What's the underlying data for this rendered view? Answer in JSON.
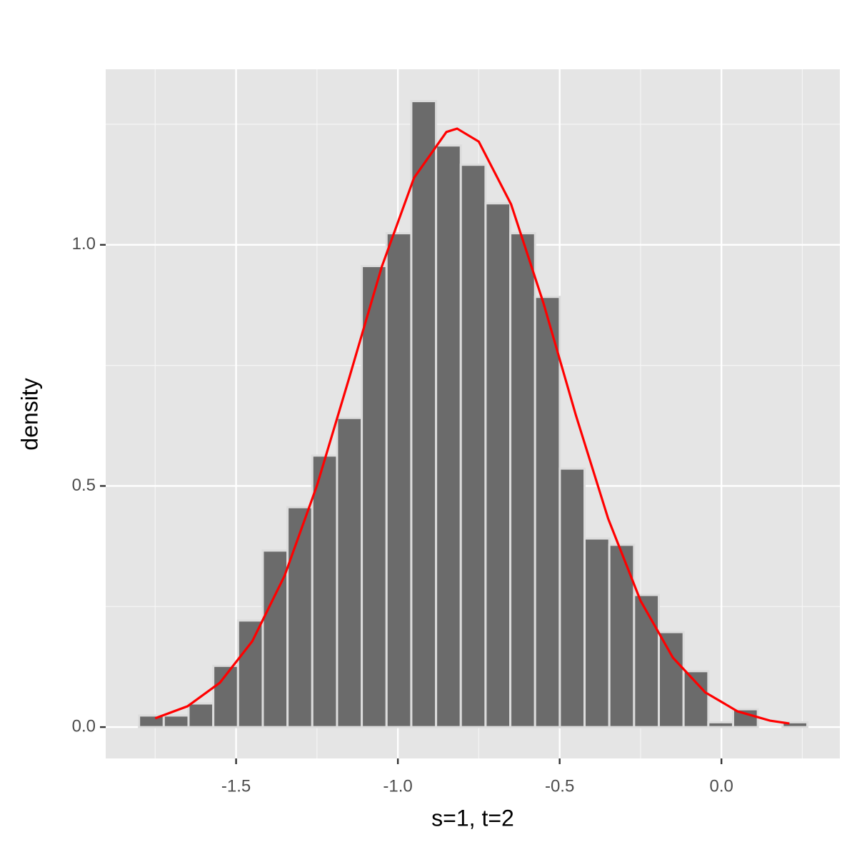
{
  "chart_data": {
    "type": "histogram",
    "x_label": "s=1, t=2",
    "y_label": "density",
    "bins": [
      -1.8,
      -1.7235,
      -1.647,
      -1.5705,
      -1.494,
      -1.4175,
      -1.341,
      -1.2645,
      -1.188,
      -1.1115,
      -1.035,
      -0.9585,
      -0.882,
      -0.8055,
      -0.729,
      -0.6525,
      -0.576,
      -0.4995,
      -0.423,
      -0.3465,
      -0.27,
      -0.1935,
      -0.117,
      -0.0405,
      0.036,
      0.1125,
      0.189,
      0.2655
    ],
    "values": [
      0.024,
      0.024,
      0.049,
      0.127,
      0.221,
      0.366,
      0.456,
      0.563,
      0.641,
      0.956,
      1.024,
      1.298,
      1.206,
      1.166,
      1.086,
      1.024,
      0.892,
      0.536,
      0.391,
      0.378,
      0.274,
      0.197,
      0.116,
      0.01,
      0.037,
      0,
      0.01
    ],
    "color": "#6b6b6b",
    "edge_color": "#dcdcdc",
    "curve": {
      "color": "#ff0000",
      "x": [
        -1.75,
        -1.65,
        -1.55,
        -1.45,
        -1.35,
        -1.25,
        -1.15,
        -1.05,
        -0.95,
        -0.85,
        -0.817,
        -0.75,
        -0.65,
        -0.55,
        -0.45,
        -0.35,
        -0.25,
        -0.15,
        -0.05,
        0.05,
        0.15,
        0.21
      ],
      "values": [
        0.0183,
        0.0432,
        0.0921,
        0.178,
        0.314,
        0.501,
        0.725,
        0.954,
        1.139,
        1.234,
        1.241,
        1.214,
        1.084,
        0.879,
        0.647,
        0.432,
        0.262,
        0.144,
        0.072,
        0.0326,
        0.0134,
        0.0075
      ]
    },
    "xlim": [
      -1.903,
      0.366
    ],
    "ylim": [
      -0.065,
      1.364
    ],
    "xticks": [
      -1.5,
      {
        "value": -1.0,
        "label": "-1.0"
      },
      -0.5,
      {
        "value": 0,
        "label": "0.0"
      }
    ],
    "yticks": [
      {
        "value": 0,
        "label": "0.0"
      },
      0.5,
      {
        "value": 1,
        "label": "1.0"
      }
    ],
    "x_minor_ticks": [
      -1.75,
      -1.25,
      -0.75,
      -0.25,
      0.25
    ],
    "y_minor_ticks": [
      0.25,
      0.75,
      1.25
    ],
    "grid": true
  }
}
